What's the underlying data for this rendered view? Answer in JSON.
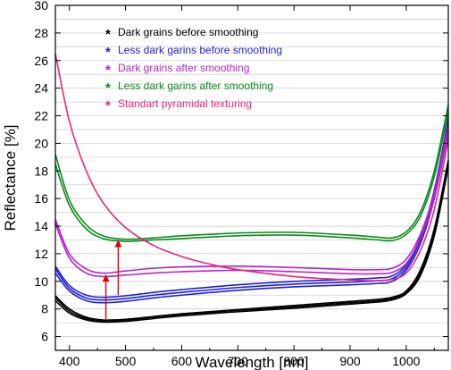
{
  "chart_data": {
    "type": "line",
    "xlabel": "Wavelength [nm]",
    "ylabel": "Reflectance [%]",
    "xlim": [
      375,
      1075
    ],
    "ylim": [
      5,
      30
    ],
    "xticks": [
      400,
      500,
      600,
      700,
      800,
      900,
      1000
    ],
    "yticks": [
      6,
      8,
      10,
      12,
      14,
      16,
      18,
      20,
      22,
      24,
      26,
      28,
      30
    ],
    "xtick_labels": [
      "400",
      "500",
      "600",
      "700",
      "800",
      "900",
      "1000"
    ],
    "ytick_labels": [
      "6",
      "8",
      "10",
      "12",
      "14",
      "16",
      "18",
      "20",
      "22",
      "24",
      "26",
      "28",
      "30"
    ],
    "grid": "horizontal",
    "legend_position": "top-left",
    "series": [
      {
        "name": "Dark grains before smoothing",
        "color": "#000000",
        "marker": "*",
        "curves": [
          {
            "x": [
              375,
              400,
              430,
              460,
              500,
              550,
              600,
              700,
              800,
              900,
              950,
              975,
              1000,
              1025,
              1050,
              1075
            ],
            "y": [
              8.95,
              8.0,
              7.4,
              7.2,
              7.25,
              7.45,
              7.65,
              7.95,
              8.25,
              8.55,
              8.7,
              8.85,
              9.3,
              10.8,
              13.8,
              18.8
            ]
          },
          {
            "x": [
              375,
              400,
              430,
              460,
              500,
              550,
              600,
              700,
              800,
              900,
              950,
              975,
              1000,
              1025,
              1050,
              1075
            ],
            "y": [
              8.8,
              7.85,
              7.3,
              7.15,
              7.2,
              7.4,
              7.6,
              7.9,
              8.15,
              8.45,
              8.6,
              8.75,
              9.2,
              10.6,
              13.6,
              18.6
            ]
          },
          {
            "x": [
              375,
              400,
              430,
              460,
              500,
              550,
              600,
              700,
              800,
              900,
              950,
              975,
              1000,
              1025,
              1050,
              1075
            ],
            "y": [
              8.6,
              7.7,
              7.2,
              7.05,
              7.1,
              7.3,
              7.5,
              7.8,
              8.05,
              8.35,
              8.5,
              8.65,
              9.1,
              10.4,
              13.3,
              18.3
            ]
          }
        ]
      },
      {
        "name": "Less dark garins before smoothing",
        "color": "#1f1fd6",
        "marker": "*",
        "curves": [
          {
            "x": [
              375,
              400,
              430,
              460,
              500,
              550,
              600,
              700,
              800,
              900,
              950,
              975,
              1000,
              1025,
              1050,
              1075
            ],
            "y": [
              11.1,
              9.7,
              9.0,
              8.85,
              8.95,
              9.2,
              9.4,
              9.75,
              10.0,
              10.15,
              10.25,
              10.4,
              11.2,
              13.2,
              16.6,
              21.8
            ]
          },
          {
            "x": [
              375,
              400,
              430,
              460,
              500,
              550,
              600,
              700,
              800,
              900,
              950,
              975,
              1000,
              1025,
              1050,
              1075
            ],
            "y": [
              10.9,
              9.5,
              8.8,
              8.65,
              8.75,
              9.0,
              9.2,
              9.55,
              9.8,
              9.95,
              10.05,
              10.2,
              11.0,
              13.0,
              16.3,
              21.3
            ]
          },
          {
            "x": [
              375,
              400,
              430,
              460,
              500,
              550,
              600,
              700,
              800,
              900,
              950,
              975,
              1000,
              1025,
              1050,
              1075
            ],
            "y": [
              10.6,
              9.3,
              8.6,
              8.45,
              8.55,
              8.8,
              9.0,
              9.35,
              9.6,
              9.75,
              9.85,
              10.0,
              10.8,
              12.7,
              16.0,
              20.8
            ]
          }
        ]
      },
      {
        "name": "Dark grains after smoothing",
        "color": "#bb22cc",
        "marker": "*",
        "curves": [
          {
            "x": [
              375,
              400,
              430,
              460,
              500,
              550,
              600,
              700,
              800,
              900,
              950,
              975,
              1000,
              1025,
              1050,
              1075
            ],
            "y": [
              14.5,
              12.0,
              10.9,
              10.6,
              10.75,
              10.95,
              11.05,
              11.1,
              11.0,
              10.85,
              10.85,
              10.95,
              11.6,
              13.4,
              16.4,
              21.4
            ]
          },
          {
            "x": [
              375,
              400,
              430,
              460,
              500,
              550,
              600,
              700,
              800,
              900,
              950,
              975,
              1000,
              1025,
              1050,
              1075
            ],
            "y": [
              14.2,
              11.7,
              10.6,
              10.35,
              10.45,
              10.6,
              10.7,
              10.8,
              10.7,
              10.55,
              10.55,
              10.65,
              11.3,
              13.1,
              16.0,
              20.9
            ]
          }
        ]
      },
      {
        "name": "Less dark garins after smoothing",
        "color": "#0a8c1e",
        "marker": "*",
        "curves": [
          {
            "x": [
              375,
              400,
              430,
              460,
              500,
              550,
              600,
              700,
              800,
              900,
              950,
              975,
              1000,
              1025,
              1050,
              1075
            ],
            "y": [
              19.2,
              15.9,
              14.1,
              13.3,
              13.05,
              13.15,
              13.3,
              13.5,
              13.55,
              13.35,
              13.2,
              13.15,
              13.6,
              15.0,
              18.0,
              22.8
            ]
          },
          {
            "x": [
              375,
              400,
              430,
              460,
              500,
              550,
              600,
              700,
              800,
              900,
              950,
              975,
              1000,
              1025,
              1050,
              1075
            ],
            "y": [
              18.5,
              15.5,
              13.8,
              13.1,
              12.9,
              13.0,
              13.1,
              13.3,
              13.35,
              13.15,
              13.0,
              12.95,
              13.4,
              14.7,
              17.6,
              22.3
            ]
          }
        ]
      },
      {
        "name": "Standart pyramidal texturing",
        "color": "#e8267e",
        "marker": "*",
        "curves": [
          {
            "x": [
              375,
              400,
              430,
              460,
              500,
              550,
              600,
              650,
              700,
              800,
              900,
              950,
              975,
              1000,
              1025,
              1050,
              1075
            ],
            "y": [
              26.5,
              21.6,
              18.0,
              15.7,
              13.9,
              12.6,
              11.8,
              11.25,
              10.85,
              10.35,
              10.1,
              10.05,
              10.15,
              10.6,
              12.2,
              15.2,
              20.3
            ]
          }
        ]
      }
    ],
    "annotations": [
      {
        "type": "arrow",
        "color": "#e00000",
        "x": 465,
        "y_from": 7.2,
        "y_to": 10.5
      },
      {
        "type": "arrow",
        "color": "#e00000",
        "x": 487,
        "y_from": 9.0,
        "y_to": 13.0
      }
    ]
  }
}
